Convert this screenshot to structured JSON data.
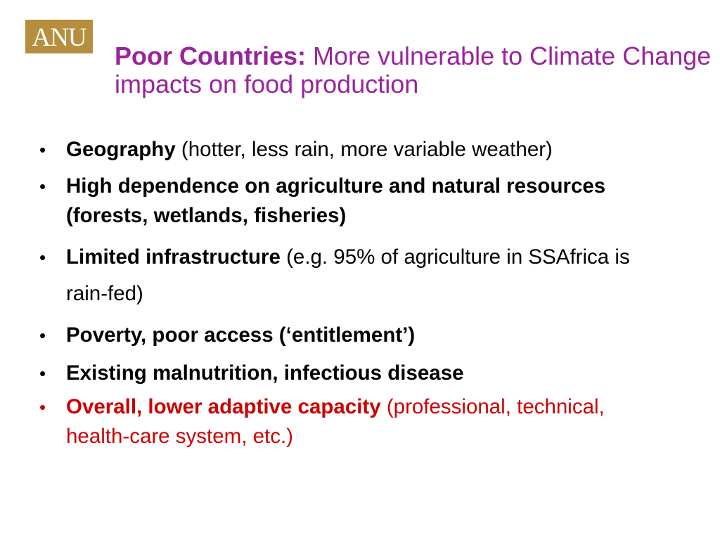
{
  "logo": {
    "text": "ANU",
    "background_color": "#b58e3e"
  },
  "title": {
    "bold": "Poor Countries:",
    "rest": " More vulnerable to Climate Change impacts on food production",
    "color": "#99249c"
  },
  "bullet_glyph": "•",
  "bullets": [
    {
      "bold": "Geography",
      "rest": " (hotter, less rain, more variable weather)",
      "color": "#000000"
    },
    {
      "bold": "High dependence on agriculture and natural resources (forests, wetlands, fisheries)",
      "rest": "",
      "color": "#000000"
    },
    {
      "bold": "Limited infrastructure",
      "rest": " (e.g. 95% of agriculture in SSAfrica is rain-fed)",
      "color": "#000000"
    },
    {
      "bold": "Poverty, poor access (‘entitlement’)",
      "rest": "",
      "color": "#000000"
    },
    {
      "bold": "Existing malnutrition, infectious disease",
      "rest": "",
      "color": "#000000"
    },
    {
      "bold": "Overall, lower adaptive capacity",
      "rest": " (professional, technical, health-care system, etc.)",
      "color": "#cc0000"
    }
  ]
}
